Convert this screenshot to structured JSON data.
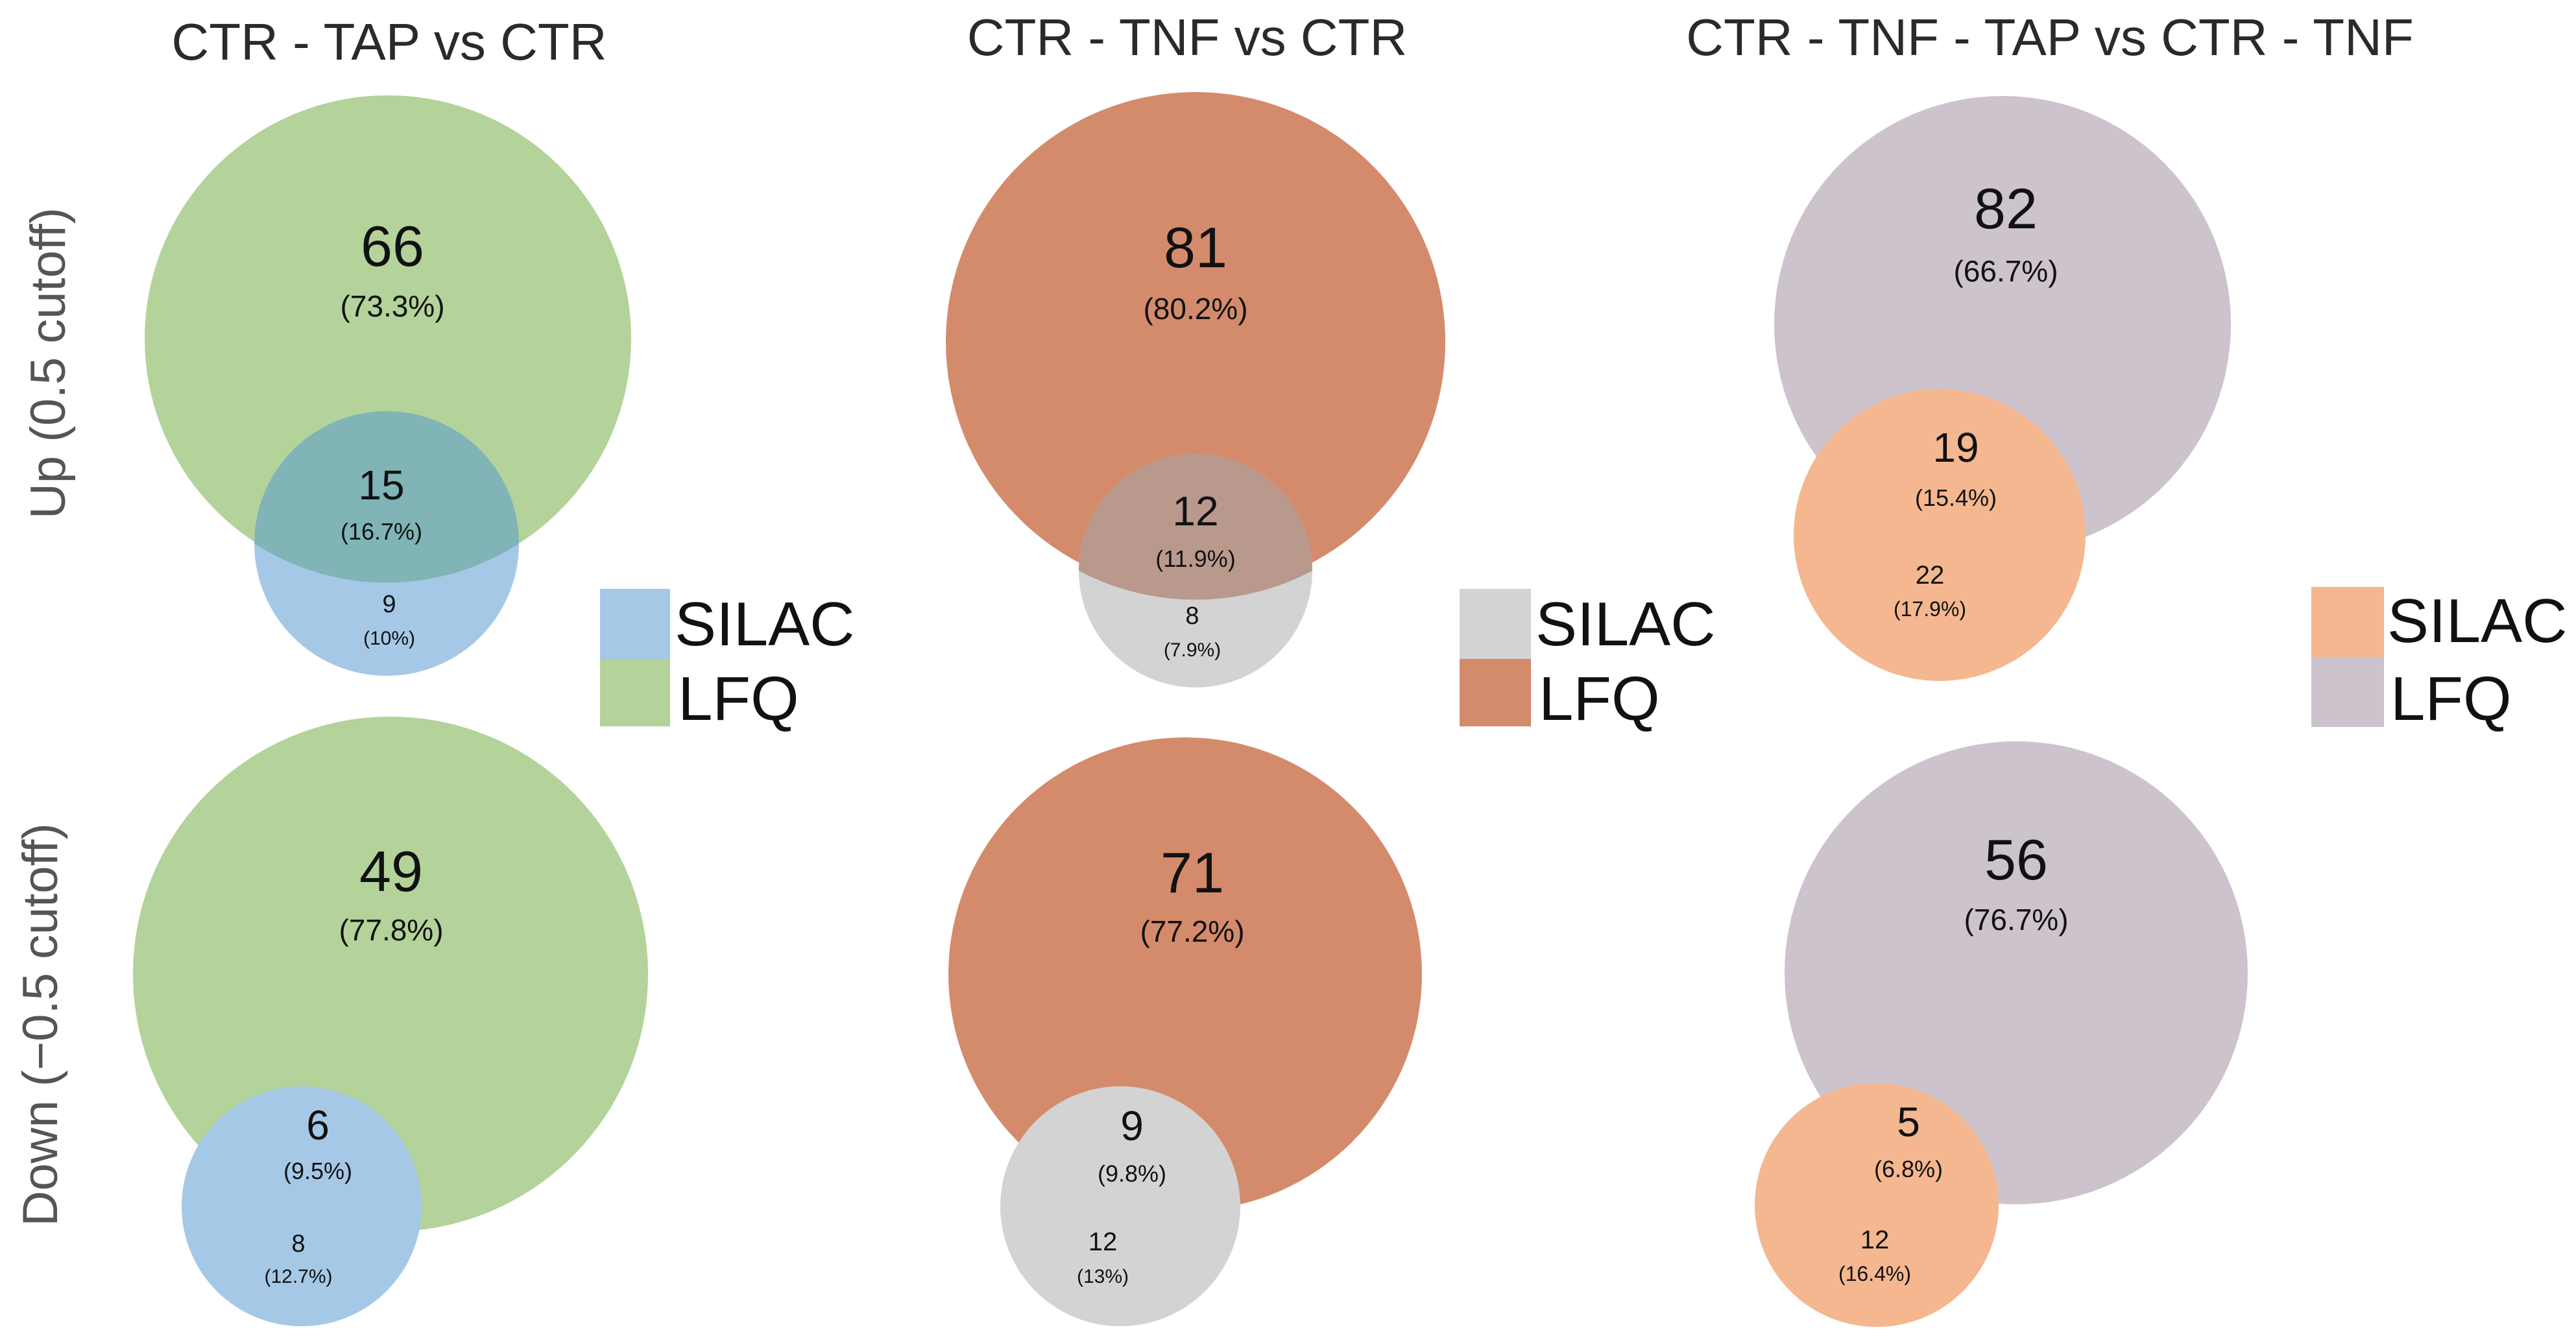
{
  "columns": [
    {
      "title": "CTR - TAP vs CTR"
    },
    {
      "title": "CTR - TNF vs CTR"
    },
    {
      "title": "CTR - TNF - TAP vs CTR - TNF"
    }
  ],
  "rows": [
    {
      "label": "Up (0.5 cutoff)"
    },
    {
      "label": "Down (−0.5 cutoff)"
    }
  ],
  "colors": {
    "silac": [
      "#a5c8e6",
      "#d3d3d3",
      "#f4b78f"
    ],
    "lfq": [
      "#b3d39a",
      "#d48b6c",
      "#cdc3cc"
    ],
    "overlap": [
      "#80b4b6",
      "#b8998c",
      "#e3a178"
    ]
  },
  "legends": [
    {
      "silac": "SILAC",
      "lfq": "LFQ"
    },
    {
      "silac": "SILAC",
      "lfq": "LFQ"
    },
    {
      "silac": "SILAC",
      "lfq": "LFQ"
    }
  ],
  "venns": [
    {
      "lfq_count": "66",
      "lfq_pct": "(73.3%)",
      "both_count": "15",
      "both_pct": "(16.7%)",
      "silac_count": "9",
      "silac_pct": "(10%)"
    },
    {
      "lfq_count": "81",
      "lfq_pct": "(80.2%)",
      "both_count": "12",
      "both_pct": "(11.9%)",
      "silac_count": "8",
      "silac_pct": "(7.9%)"
    },
    {
      "lfq_count": "82",
      "lfq_pct": "(66.7%)",
      "both_count": "19",
      "both_pct": "(15.4%)",
      "silac_count": "22",
      "silac_pct": "(17.9%)"
    },
    {
      "lfq_count": "49",
      "lfq_pct": "(77.8%)",
      "both_count": "6",
      "both_pct": "(9.5%)",
      "silac_count": "8",
      "silac_pct": "(12.7%)"
    },
    {
      "lfq_count": "71",
      "lfq_pct": "(77.2%)",
      "both_count": "9",
      "both_pct": "(9.8%)",
      "silac_count": "12",
      "silac_pct": "(13%)"
    },
    {
      "lfq_count": "56",
      "lfq_pct": "(76.7%)",
      "both_count": "5",
      "both_pct": "(6.8%)",
      "silac_count": "12",
      "silac_pct": "(16.4%)"
    }
  ]
}
